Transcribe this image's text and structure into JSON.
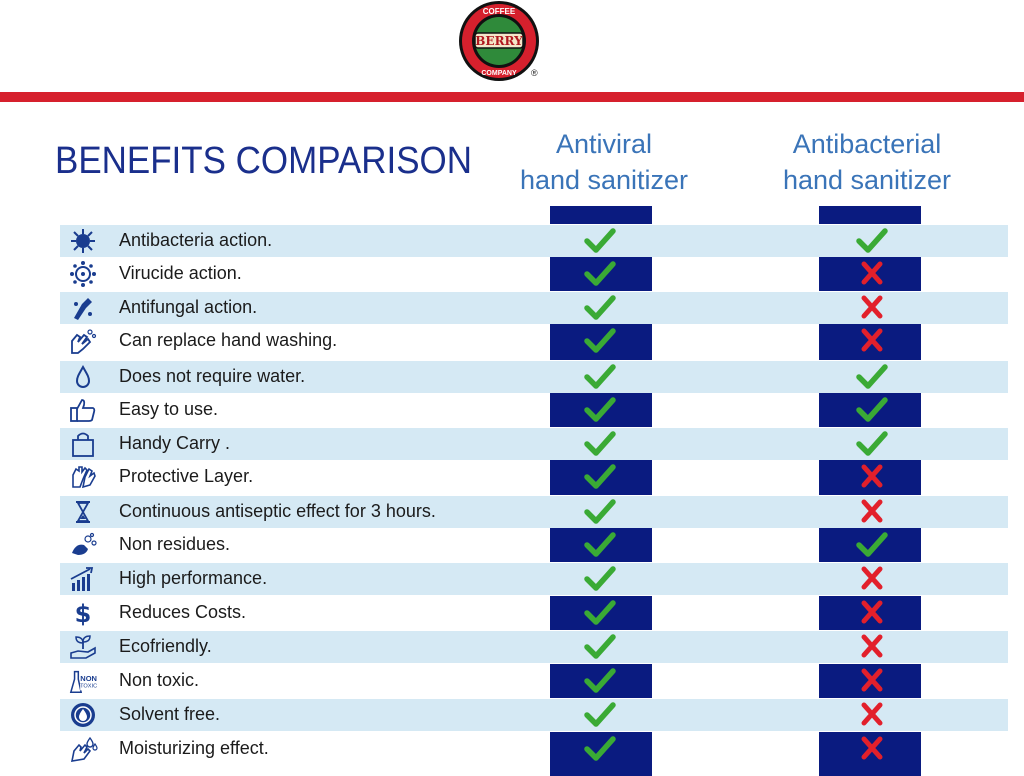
{
  "logo": {
    "text_top": "COFFEE",
    "text_mid": "BERRY",
    "text_bottom": "COMPANY",
    "registered": "®"
  },
  "title": "BENEFITS COMPARISON",
  "columns": [
    {
      "line1": "Antiviral",
      "line2": "hand sanitizer"
    },
    {
      "line1": "Antibacterial",
      "line2": "hand sanitizer"
    }
  ],
  "colors": {
    "accent_red": "#d6202d",
    "navy": "#0a1b80",
    "band": "#d5e9f4",
    "check": "#3aaa35",
    "cross": "#e2202b"
  },
  "rows": [
    {
      "label": "Antibacteria action.",
      "icon": "bacteria-icon",
      "antiviral": "check",
      "antibacterial": "check"
    },
    {
      "label": "Virucide action.",
      "icon": "virus-icon",
      "antiviral": "check",
      "antibacterial": "cross"
    },
    {
      "label": "Antifungal action.",
      "icon": "fungus-icon",
      "antiviral": "check",
      "antibacterial": "cross"
    },
    {
      "label": "Can replace hand washing.",
      "icon": "hands-icon",
      "antiviral": "check",
      "antibacterial": "cross"
    },
    {
      "label": "Does not require water.",
      "icon": "water-drop-icon",
      "antiviral": "check",
      "antibacterial": "check"
    },
    {
      "label": "Easy to use.",
      "icon": "thumbs-up-icon",
      "antiviral": "check",
      "antibacterial": "check"
    },
    {
      "label": "Handy Carry .",
      "icon": "bag-icon",
      "antiviral": "check",
      "antibacterial": "check"
    },
    {
      "label": "Protective Layer.",
      "icon": "gloves-icon",
      "antiviral": "check",
      "antibacterial": "cross"
    },
    {
      "label": "Continuous antiseptic effect for 3 hours.",
      "icon": "hourglass-icon",
      "antiviral": "check",
      "antibacterial": "cross"
    },
    {
      "label": "Non residues.",
      "icon": "foam-hand-icon",
      "antiviral": "check",
      "antibacterial": "check"
    },
    {
      "label": "High performance.",
      "icon": "growth-chart-icon",
      "antiviral": "check",
      "antibacterial": "cross"
    },
    {
      "label": "Reduces Costs.",
      "icon": "dollar-icon",
      "antiviral": "check",
      "antibacterial": "cross"
    },
    {
      "label": "Ecofriendly.",
      "icon": "plant-hand-icon",
      "antiviral": "check",
      "antibacterial": "cross"
    },
    {
      "label": "Non toxic.",
      "icon": "non-toxic-icon",
      "icon_text_1": "NON",
      "icon_text_2": "TOXIC",
      "antiviral": "check",
      "antibacterial": "cross"
    },
    {
      "label": "Solvent free.",
      "icon": "solvent-free-icon",
      "antiviral": "check",
      "antibacterial": "cross"
    },
    {
      "label": "Moisturizing effect.",
      "icon": "moisture-hand-icon",
      "antiviral": "check",
      "antibacterial": "cross"
    }
  ]
}
